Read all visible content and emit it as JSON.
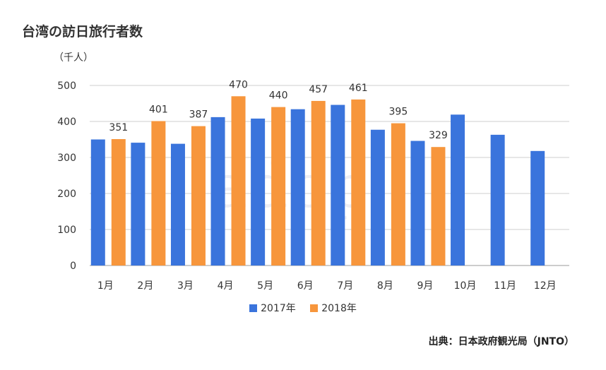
{
  "title": "台湾の訪日旅行者数",
  "unit_label": "（千人）",
  "source": "出典：日本政府観光局（JNTO）",
  "watermark": "adop",
  "colors": {
    "series_2017": "#3a74dc",
    "series_2018": "#f7963c",
    "grid": "#cfcfcf",
    "text": "#333333"
  },
  "chart_data": {
    "type": "bar",
    "categories": [
      "1月",
      "2月",
      "3月",
      "4月",
      "5月",
      "6月",
      "7月",
      "8月",
      "9月",
      "10月",
      "11月",
      "12月"
    ],
    "series": [
      {
        "name": "2017年",
        "values": [
          350,
          341,
          338,
          412,
          408,
          434,
          446,
          377,
          346,
          419,
          363,
          318
        ]
      },
      {
        "name": "2018年",
        "values": [
          351,
          401,
          387,
          470,
          440,
          457,
          461,
          395,
          329,
          null,
          null,
          null
        ]
      }
    ],
    "data_labels": [
      "351",
      "401",
      "387",
      "470",
      "440",
      "457",
      "461",
      "395",
      "329"
    ],
    "yticks": [
      "0",
      "100",
      "200",
      "300",
      "400",
      "500"
    ],
    "ylim": [
      0,
      500
    ],
    "grid": true,
    "legend_position": "bottom"
  }
}
